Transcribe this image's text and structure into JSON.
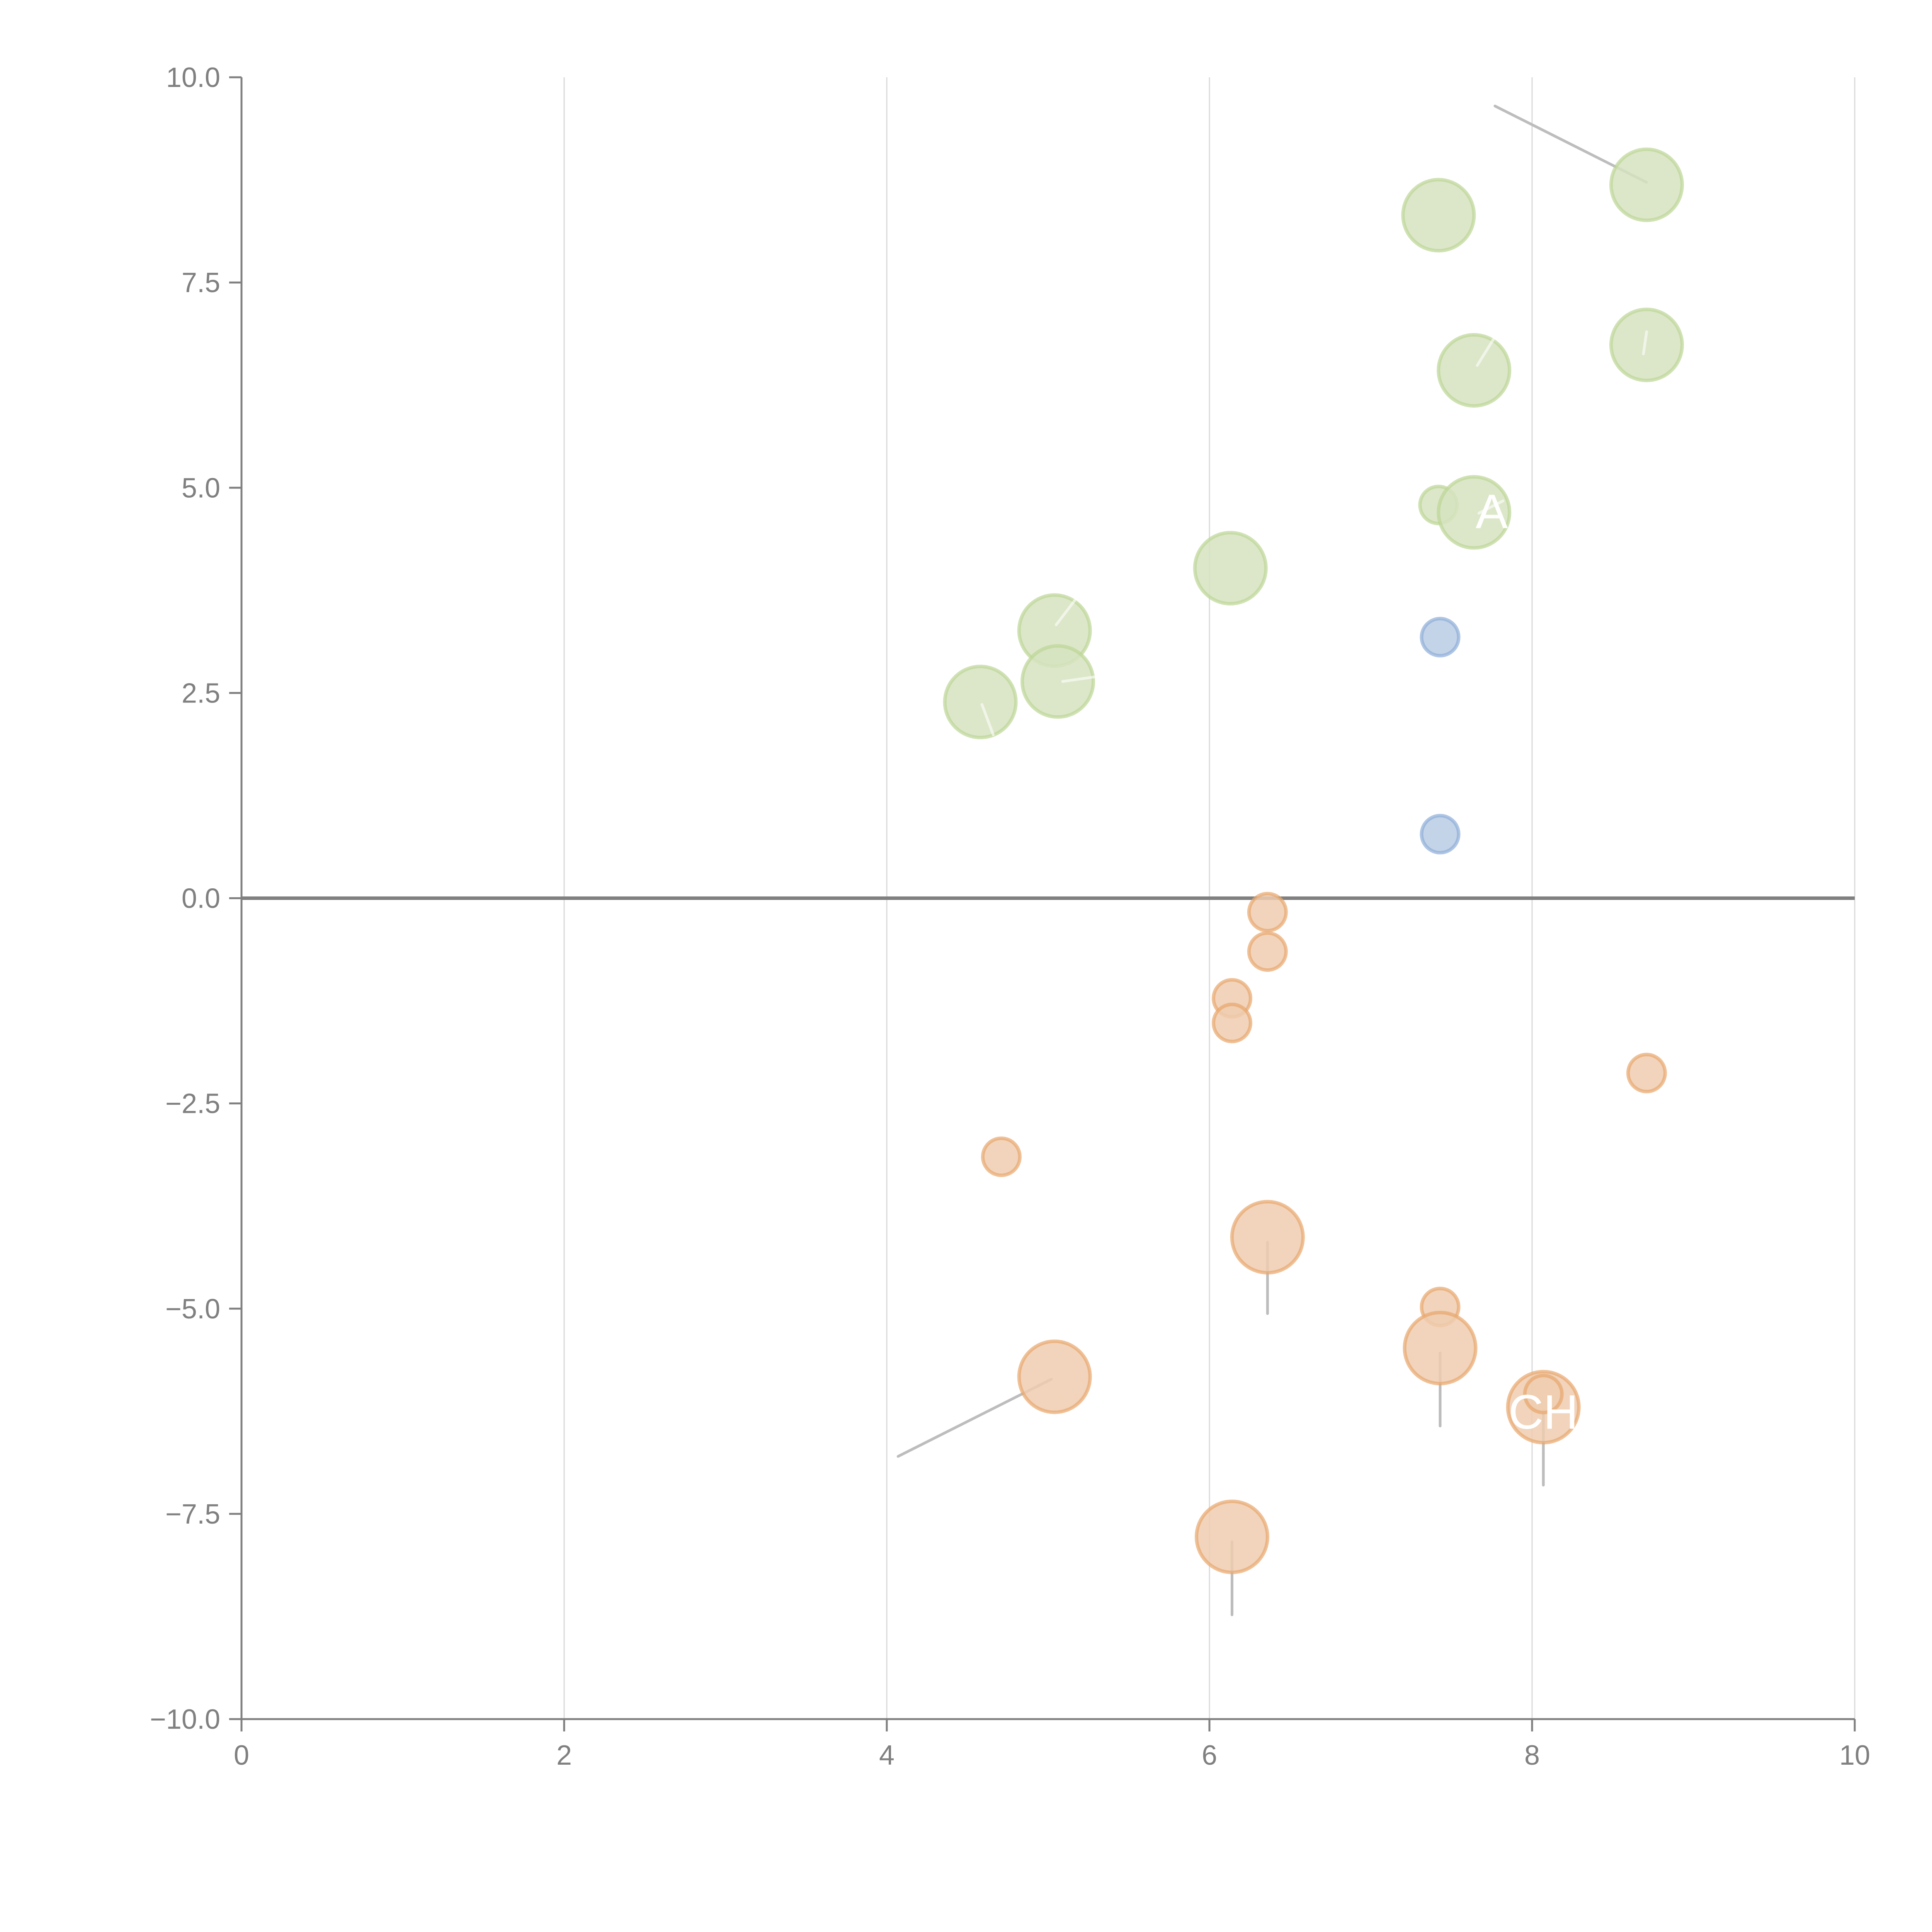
{
  "chart_data": {
    "type": "scatter",
    "title": "",
    "xlabel": "",
    "ylabel": "",
    "xlim": [
      0,
      10
    ],
    "ylim": [
      -10,
      10
    ],
    "x_ticks": [
      "0",
      "2",
      "4",
      "6",
      "8",
      "10"
    ],
    "x_tick_values": [
      0,
      2,
      4,
      6,
      8,
      10
    ],
    "y_ticks": [
      "10.0",
      "7.5",
      "5.0",
      "2.5",
      "0.0",
      "−2.5",
      "−5.0",
      "−7.5",
      "−10.0"
    ],
    "y_tick_values": [
      10,
      7.5,
      5,
      2.5,
      0,
      -2.5,
      -5,
      -7.5,
      -10
    ],
    "grid": "vertical",
    "zero_line": true,
    "legend": "none",
    "colors": {
      "green_fill": "#d6e3bf",
      "green_stroke": "#bcd596",
      "blue_fill": "#b9cce4",
      "blue_stroke": "#8eaed8",
      "orange_fill": "#efcdaf",
      "orange_stroke": "#e8a66c",
      "axis": "#808080",
      "grid": "#d9d9d9",
      "leader": "#bdbdbd"
    },
    "series": [
      {
        "name": "green",
        "points": [
          {
            "x": 8.71,
            "y": 8.69,
            "size": 2
          },
          {
            "x": 7.42,
            "y": 8.32,
            "size": 2
          },
          {
            "x": 7.64,
            "y": 6.43,
            "size": 2
          },
          {
            "x": 8.71,
            "y": 6.74,
            "size": 2
          },
          {
            "x": 7.42,
            "y": 4.79,
            "size": 1
          },
          {
            "x": 7.64,
            "y": 4.7,
            "size": 2
          },
          {
            "x": 6.13,
            "y": 4.02,
            "size": 2
          },
          {
            "x": 5.04,
            "y": 3.26,
            "size": 2
          },
          {
            "x": 5.06,
            "y": 2.64,
            "size": 2
          },
          {
            "x": 4.58,
            "y": 2.39,
            "size": 2
          }
        ]
      },
      {
        "name": "blue",
        "points": [
          {
            "x": 7.43,
            "y": 3.18,
            "size": 1
          },
          {
            "x": 7.43,
            "y": 0.78,
            "size": 1
          }
        ]
      },
      {
        "name": "orange",
        "points": [
          {
            "x": 6.36,
            "y": -0.17,
            "size": 1
          },
          {
            "x": 6.36,
            "y": -0.65,
            "size": 1
          },
          {
            "x": 6.14,
            "y": -1.22,
            "size": 1
          },
          {
            "x": 6.14,
            "y": -1.52,
            "size": 1
          },
          {
            "x": 8.71,
            "y": -2.13,
            "size": 1
          },
          {
            "x": 4.71,
            "y": -3.15,
            "size": 1
          },
          {
            "x": 6.36,
            "y": -4.13,
            "size": 2
          },
          {
            "x": 7.43,
            "y": -4.98,
            "size": 1
          },
          {
            "x": 7.43,
            "y": -5.48,
            "size": 2
          },
          {
            "x": 5.04,
            "y": -5.83,
            "size": 2
          },
          {
            "x": 8.07,
            "y": -6.2,
            "size": 2
          },
          {
            "x": 8.07,
            "y": -6.04,
            "size": 1
          },
          {
            "x": 6.14,
            "y": -7.78,
            "size": 2
          }
        ]
      }
    ],
    "leaders": [
      {
        "from": [
          8.71,
          8.72
        ],
        "to": [
          7.77,
          9.65
        ],
        "style": "gray"
      },
      {
        "from": [
          5.02,
          -5.86
        ],
        "to": [
          4.07,
          -6.8
        ],
        "style": "gray"
      },
      {
        "from": [
          6.36,
          -4.19
        ],
        "to": [
          6.36,
          -5.06
        ],
        "style": "gray"
      },
      {
        "from": [
          7.43,
          -5.54
        ],
        "to": [
          7.43,
          -6.43
        ],
        "style": "gray"
      },
      {
        "from": [
          8.07,
          -6.24
        ],
        "to": [
          8.07,
          -7.15
        ],
        "style": "gray"
      },
      {
        "from": [
          6.14,
          -7.84
        ],
        "to": [
          6.14,
          -8.73
        ],
        "style": "gray"
      },
      {
        "from": [
          7.66,
          6.49
        ],
        "to": [
          7.78,
          6.87
        ],
        "style": "white"
      },
      {
        "from": [
          8.69,
          6.63
        ],
        "to": [
          8.71,
          6.9
        ],
        "style": "white"
      },
      {
        "from": [
          7.67,
          4.69
        ],
        "to": [
          7.82,
          4.84
        ],
        "style": "white"
      },
      {
        "from": [
          5.05,
          3.33
        ],
        "to": [
          5.17,
          3.64
        ],
        "style": "white"
      },
      {
        "from": [
          5.09,
          2.64
        ],
        "to": [
          5.34,
          2.71
        ],
        "style": "white"
      },
      {
        "from": [
          4.59,
          2.36
        ],
        "to": [
          4.66,
          1.99
        ],
        "style": "white"
      }
    ],
    "annotations": [
      {
        "text": "A",
        "x": 7.63,
        "y": 4.72
      },
      {
        "text": "CH",
        "x": 8.07,
        "y": -6.25
      }
    ]
  }
}
